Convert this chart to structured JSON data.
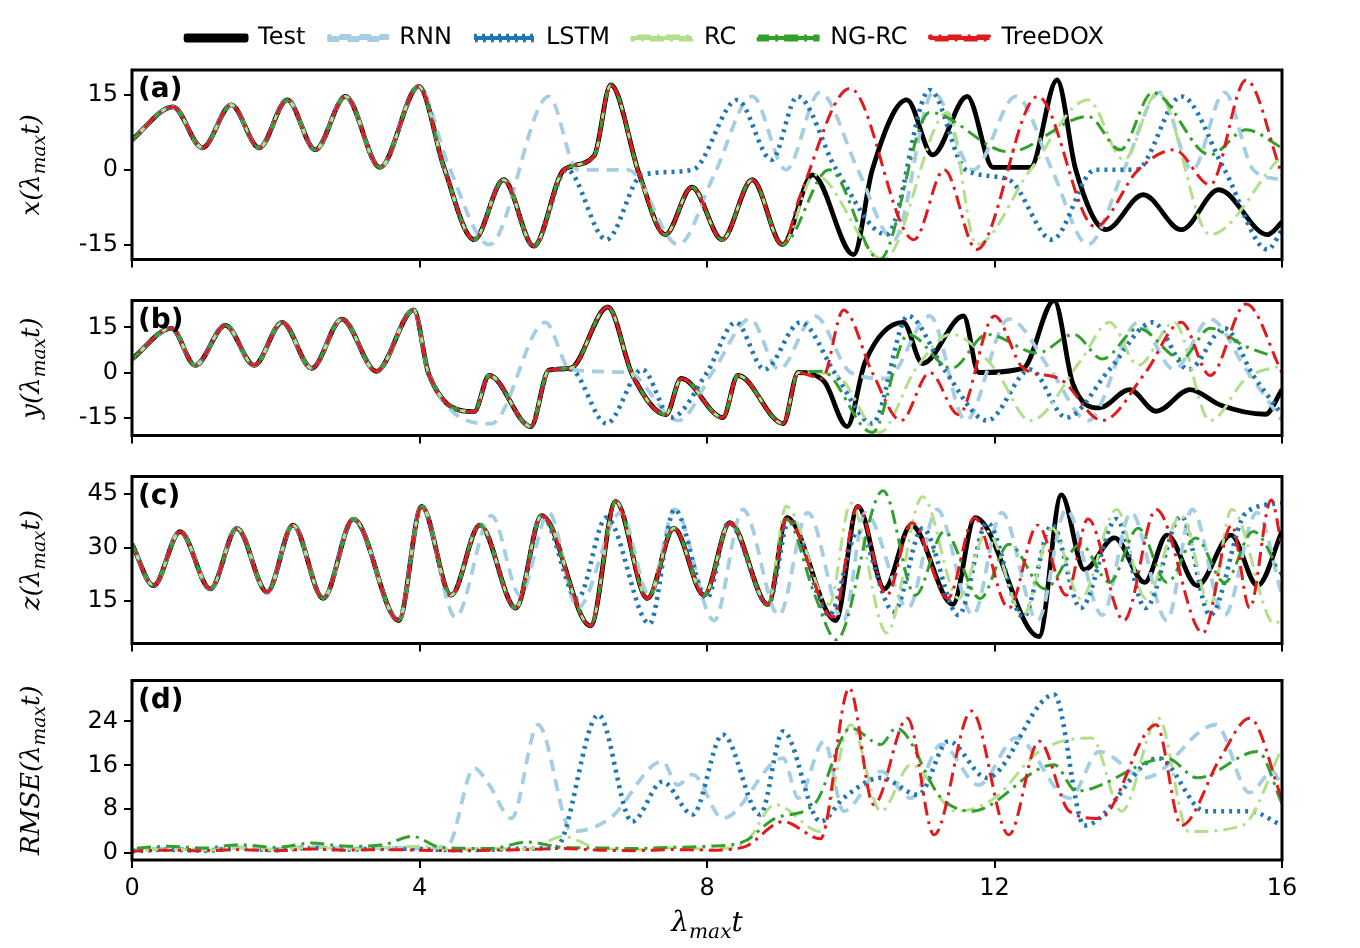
{
  "chart_data": [
    {
      "type": "line",
      "ylabel": "x(λ$_{max}$t)",
      "annotations": [
        "(a)"
      ],
      "xlim": [
        0,
        16
      ],
      "xticks": [
        0,
        4,
        8,
        12,
        16
      ],
      "ylim": [
        -18,
        20
      ],
      "yticks": [
        -15,
        0,
        15
      ],
      "tick_labels": "y",
      "grid": false,
      "legend": "top",
      "series": [
        {
          "name": "Test",
          "color": "#000000",
          "line_style": "solid",
          "x": [
            0,
            0.57,
            0.98,
            1.38,
            1.77,
            2.16,
            2.55,
            2.97,
            3.45,
            3.99,
            4.34,
            4.76,
            5.17,
            5.59,
            6.01,
            6.43,
            6.66,
            7.06,
            7.42,
            7.79,
            8.21,
            8.63,
            9.05,
            9.47,
            10.04,
            10.3,
            10.78,
            11.14,
            11.62,
            11.98,
            12.5,
            12.87,
            13.13,
            13.55,
            14.07,
            14.6,
            15.12,
            15.8,
            16
          ],
          "values": [
            6,
            12.6,
            4.4,
            13,
            4.4,
            14,
            4,
            14.7,
            0.5,
            16.7,
            0.5,
            -14,
            -2,
            -15.3,
            0,
            2.8,
            17,
            -1,
            -13,
            -3.5,
            -14,
            -2,
            -15,
            -1,
            -17,
            0,
            14,
            3,
            14.7,
            0.5,
            0.5,
            18,
            0,
            -12,
            -5,
            -12,
            -4,
            -13,
            -10.5
          ]
        },
        {
          "name": "RNN",
          "color": "#a6cee3",
          "line_style": "dashed",
          "x": [
            0,
            0.57,
            0.98,
            1.38,
            1.77,
            2.16,
            2.55,
            2.97,
            3.45,
            3.99,
            4.4,
            4.97,
            5.8,
            6.2,
            6.9,
            7.6,
            8.1,
            8.63,
            9.1,
            9.57,
            10.1,
            10.6,
            11.15,
            11.7,
            12.3,
            12.8,
            13.3,
            13.8,
            14.3,
            14.75,
            15.2,
            15.6,
            16
          ],
          "values": [
            6,
            12.6,
            4.4,
            13,
            4.4,
            14,
            4,
            14.7,
            0.5,
            16.7,
            1,
            -15,
            14.7,
            0,
            0,
            -15,
            -1,
            14.7,
            0,
            15.5,
            0,
            -14,
            15.5,
            0,
            14.7,
            0,
            -15,
            0,
            15.5,
            0,
            15.5,
            0,
            -2
          ]
        },
        {
          "name": "LSTM",
          "color": "#1f78b4",
          "line_style": "dotted",
          "x": [
            0,
            0.57,
            0.98,
            1.38,
            1.77,
            2.16,
            2.55,
            2.97,
            3.45,
            3.99,
            4.34,
            4.76,
            5.17,
            5.59,
            6.05,
            6.6,
            7.1,
            7.8,
            8.42,
            8.9,
            9.26,
            9.8,
            10.5,
            11.1,
            11.6,
            12.2,
            12.8,
            13.4,
            13.97,
            14.6,
            15.2,
            15.8,
            16
          ],
          "values": [
            6,
            12.6,
            4.4,
            13,
            4.4,
            14,
            4,
            14.7,
            0.5,
            16.7,
            0.5,
            -14,
            -2,
            -15.3,
            0,
            -14,
            -1,
            0,
            14,
            2,
            14.7,
            0,
            -13,
            16,
            0,
            -2,
            -14,
            0,
            0,
            14.7,
            0,
            -16,
            -12
          ]
        },
        {
          "name": "RC",
          "color": "#b2df8a",
          "line_style": "dashdot",
          "x": [
            0,
            0.57,
            0.98,
            1.38,
            1.77,
            2.16,
            2.55,
            2.97,
            3.45,
            3.99,
            4.34,
            4.76,
            5.17,
            5.59,
            6.01,
            6.43,
            6.66,
            7.06,
            7.42,
            7.79,
            8.21,
            8.63,
            9.05,
            9.5,
            10.46,
            11.35,
            11.75,
            12.5,
            13.3,
            13.8,
            14.27,
            15.0,
            15.9,
            16
          ],
          "values": [
            6,
            12.6,
            4.4,
            13,
            4.4,
            14,
            4,
            14.7,
            0.5,
            16.7,
            0.5,
            -14,
            -2,
            -15.3,
            0,
            2.8,
            17,
            -1,
            -13,
            -3.5,
            -14,
            -2,
            -15,
            -1,
            -18,
            11.5,
            -15,
            0,
            14,
            2,
            15.5,
            -13,
            1.3,
            3
          ]
        },
        {
          "name": "NG-RC",
          "color": "#33a02c",
          "line_style": "dashdot",
          "x": [
            0,
            0.57,
            0.98,
            1.38,
            1.77,
            2.16,
            2.55,
            2.97,
            3.45,
            3.99,
            4.34,
            4.76,
            5.17,
            5.59,
            6.01,
            6.43,
            6.66,
            7.06,
            7.42,
            7.79,
            8.21,
            8.63,
            9.05,
            9.7,
            10.4,
            11.1,
            12.2,
            13.3,
            13.75,
            14.2,
            15.0,
            15.5,
            16
          ],
          "values": [
            6,
            12.6,
            4.4,
            13,
            4.4,
            14,
            4,
            14.7,
            0.5,
            16.7,
            0.5,
            -14,
            -2,
            -15.3,
            0,
            2.8,
            17,
            -1,
            -13,
            -3.5,
            -14,
            -2,
            -15,
            0,
            -18,
            11.5,
            3.6,
            10.7,
            4,
            15.5,
            3,
            8,
            4.4
          ]
        },
        {
          "name": "TreeDOX",
          "color": "#e31a1c",
          "line_style": "dashdot",
          "x": [
            0,
            0.57,
            0.98,
            1.38,
            1.77,
            2.16,
            2.55,
            2.97,
            3.45,
            3.99,
            4.34,
            4.76,
            5.17,
            5.59,
            6.01,
            6.43,
            6.66,
            7.06,
            7.42,
            7.79,
            8.21,
            8.63,
            9.05,
            9.3,
            9.99,
            10.88,
            11.3,
            11.75,
            12.6,
            13.4,
            14.0,
            14.5,
            15.0,
            15.5,
            16
          ],
          "values": [
            6,
            12.6,
            4.4,
            13,
            4.4,
            14,
            4,
            14.7,
            0.5,
            16.7,
            0.5,
            -14,
            -2,
            -15.3,
            0,
            2.8,
            17,
            -1,
            -13,
            -3.5,
            -14,
            -2,
            -15,
            -5,
            16.3,
            -14,
            0,
            -16,
            14.7,
            -11.4,
            0,
            4,
            -3,
            18,
            -1
          ]
        }
      ]
    },
    {
      "type": "line",
      "ylabel": "y(λ$_{max}$t)",
      "annotations": [
        "(b)"
      ],
      "xlim": [
        0,
        16
      ],
      "xticks": [
        0,
        4,
        8,
        12,
        16
      ],
      "ylim": [
        -21,
        24
      ],
      "yticks": [
        -15,
        0,
        15
      ],
      "tick_labels": "y",
      "grid": false,
      "series": [
        {
          "color": "#000000",
          "line_style": "solid",
          "x": [
            0,
            0.55,
            0.88,
            1.3,
            1.7,
            2.09,
            2.5,
            2.92,
            3.4,
            3.92,
            4.13,
            4.76,
            4.97,
            5.55,
            5.8,
            6.1,
            6.62,
            6.96,
            7.43,
            7.64,
            8.22,
            8.43,
            9.06,
            9.27,
            9.63,
            9.95,
            10.2,
            10.73,
            11.0,
            11.57,
            11.78,
            12.4,
            12.83,
            13.09,
            13.46,
            13.88,
            14.25,
            14.72,
            15.14,
            15.77,
            16
          ],
          "values": [
            4.5,
            14.7,
            2.4,
            15.7,
            2.4,
            16.7,
            1.4,
            17.8,
            0.4,
            20.8,
            -0.6,
            -13,
            -1,
            -18,
            0.8,
            1.4,
            21.8,
            -0.6,
            -14,
            -2,
            -15,
            -1,
            -17,
            0,
            -3,
            -18,
            3.5,
            16.7,
            3,
            18.8,
            0,
            1.4,
            23.9,
            -3.7,
            -11.8,
            -5.7,
            -12.9,
            -5.7,
            -10.8,
            -13.9,
            -5.7
          ]
        },
        {
          "color": "#a6cee3",
          "line_style": "dashed",
          "x": [
            0,
            0.55,
            0.88,
            1.3,
            1.7,
            2.09,
            2.5,
            2.92,
            3.4,
            3.92,
            4.13,
            5.0,
            5.75,
            6.1,
            6.9,
            7.6,
            8.1,
            8.6,
            9.0,
            9.5,
            10.0,
            10.5,
            11.1,
            11.6,
            12.2,
            12.8,
            13.3,
            14.0,
            14.5,
            15.0,
            15.5,
            16
          ],
          "values": [
            4.5,
            14.7,
            2.4,
            15.7,
            2.4,
            16.7,
            1.4,
            17.8,
            0.4,
            20.8,
            -0.6,
            -17,
            16.7,
            1,
            0,
            -16,
            1,
            17.8,
            1,
            18.8,
            0,
            -2,
            18.8,
            -16,
            17.8,
            0,
            -16,
            16.7,
            1,
            17.8,
            1,
            -16
          ]
        },
        {
          "color": "#1f78b4",
          "line_style": "dotted",
          "x": [
            0,
            0.55,
            0.88,
            1.3,
            1.7,
            2.09,
            2.5,
            2.92,
            3.4,
            3.92,
            4.13,
            4.76,
            4.97,
            5.55,
            5.8,
            6.1,
            6.6,
            7.1,
            7.5,
            8.0,
            8.4,
            8.8,
            9.3,
            9.8,
            10.3,
            10.8,
            11.3,
            11.9,
            12.5,
            13.0,
            13.6,
            14.2,
            14.7,
            15.2,
            15.6,
            16
          ],
          "values": [
            4.5,
            14.7,
            2.4,
            15.7,
            2.4,
            16.7,
            1.4,
            17.8,
            0.4,
            20.8,
            -0.6,
            -13,
            -1,
            -18,
            0.8,
            1,
            -17,
            1,
            -15,
            0,
            16.7,
            1,
            16.7,
            -1,
            -17,
            18.8,
            1,
            -16,
            1,
            -15,
            1,
            16.7,
            1,
            14.7,
            -1,
            -14
          ]
        },
        {
          "color": "#b2df8a",
          "line_style": "dashdot",
          "x": [
            0,
            0.55,
            0.88,
            1.3,
            1.7,
            2.09,
            2.5,
            2.92,
            3.4,
            3.92,
            4.13,
            4.76,
            4.97,
            5.55,
            5.8,
            6.1,
            6.62,
            6.96,
            7.43,
            7.64,
            8.22,
            8.43,
            9.06,
            9.27,
            9.8,
            10.4,
            10.9,
            11.4,
            12.0,
            12.5,
            13.2,
            13.6,
            14.0,
            14.5,
            15.0,
            15.5,
            16
          ],
          "values": [
            4.5,
            14.7,
            2.4,
            15.7,
            2.4,
            16.7,
            1.4,
            17.8,
            0.4,
            20.8,
            -0.6,
            -13,
            -1,
            -18,
            0.8,
            1.4,
            21.8,
            -0.6,
            -14,
            -2,
            -15,
            -1,
            -17,
            0,
            -1,
            -20,
            1,
            12.7,
            1.4,
            -16,
            4,
            16.7,
            2.4,
            16.7,
            -16,
            -2,
            2.4
          ]
        },
        {
          "color": "#33a02c",
          "line_style": "dashdot",
          "x": [
            0,
            0.55,
            0.88,
            1.3,
            1.7,
            2.09,
            2.5,
            2.92,
            3.4,
            3.92,
            4.13,
            4.76,
            4.97,
            5.55,
            5.8,
            6.1,
            6.62,
            6.96,
            7.43,
            7.64,
            8.22,
            8.43,
            9.06,
            9.27,
            9.6,
            10.3,
            10.8,
            11.4,
            11.9,
            12.6,
            13.1,
            13.5,
            14.0,
            14.6,
            15.0,
            15.5,
            16
          ],
          "values": [
            4.5,
            14.7,
            2.4,
            15.7,
            2.4,
            16.7,
            1.4,
            17.8,
            0.4,
            20.8,
            -0.6,
            -13,
            -1,
            -18,
            0.8,
            1.4,
            21.8,
            -0.6,
            -14,
            -2,
            -15,
            -1,
            -17,
            0,
            0.4,
            -20,
            12.7,
            1.4,
            12.7,
            6.5,
            12.7,
            4.5,
            14.7,
            4.5,
            14.7,
            8.6,
            4.5
          ]
        },
        {
          "color": "#e31a1c",
          "line_style": "dashdot",
          "x": [
            0,
            0.55,
            0.88,
            1.3,
            1.7,
            2.09,
            2.5,
            2.92,
            3.4,
            3.92,
            4.13,
            4.76,
            4.97,
            5.55,
            5.8,
            6.1,
            6.62,
            6.96,
            7.43,
            7.64,
            8.22,
            8.43,
            9.06,
            9.27,
            9.6,
            9.9,
            10.3,
            10.7,
            11.1,
            11.5,
            12.0,
            12.4,
            12.9,
            13.5,
            14.1,
            14.6,
            15.0,
            15.5,
            16
          ],
          "values": [
            4.5,
            14.7,
            2.4,
            15.7,
            2.4,
            16.7,
            1.4,
            17.8,
            0.4,
            20.8,
            -0.6,
            -13,
            -1,
            -18,
            0.8,
            1.4,
            21.8,
            -0.6,
            -14,
            -2,
            -15,
            -1,
            -17,
            0,
            -2,
            20.8,
            0,
            -16,
            0,
            -14,
            18.8,
            1.4,
            -2,
            -16,
            0,
            16.7,
            -1,
            22.8,
            0
          ]
        }
      ]
    },
    {
      "type": "line",
      "ylabel": "z(λ$_{max}$t)",
      "annotations": [
        "(c)"
      ],
      "xlim": [
        0,
        16
      ],
      "xticks": [
        0,
        4,
        8,
        12,
        16
      ],
      "ylim": [
        3,
        50
      ],
      "yticks": [
        15,
        30,
        45
      ],
      "tick_labels": "y",
      "grid": false,
      "series": [
        {
          "color": "#000000",
          "line_style": "solid",
          "x": [
            0,
            0.3,
            0.67,
            1.09,
            1.46,
            1.88,
            2.24,
            2.66,
            3.08,
            3.71,
            4.03,
            4.44,
            4.84,
            5.34,
            5.7,
            6.38,
            6.73,
            7.17,
            7.54,
            7.96,
            8.32,
            8.85,
            9.11,
            9.79,
            10.1,
            10.47,
            10.84,
            11.42,
            11.73,
            12.62,
            12.93,
            13.25,
            13.67,
            14.09,
            14.4,
            14.82,
            15.29,
            15.66,
            16
          ],
          "values": [
            31,
            19.3,
            34.5,
            18.4,
            35.4,
            17.5,
            36.3,
            15.7,
            38,
            9.5,
            41.6,
            16.6,
            36.3,
            13,
            39,
            8,
            43,
            15.7,
            35.4,
            16.6,
            37,
            14,
            38.4,
            9.5,
            41.6,
            18.4,
            36.3,
            14,
            38.4,
            5,
            44.8,
            23.8,
            32.7,
            20.2,
            33.5,
            19.3,
            33.5,
            19.3,
            34.5
          ]
        },
        {
          "color": "#a6cee3",
          "line_style": "dashed",
          "x": [
            0,
            0.3,
            0.67,
            1.09,
            1.46,
            1.88,
            2.24,
            2.66,
            3.08,
            3.71,
            4.03,
            4.5,
            5.0,
            5.4,
            5.8,
            6.2,
            6.8,
            7.2,
            7.55,
            8.1,
            8.5,
            9.0,
            9.4,
            9.9,
            10.2,
            10.8,
            11.2,
            11.7,
            12.1,
            12.6,
            13.0,
            13.5,
            13.9,
            14.4,
            14.75,
            15.2,
            15.65,
            16
          ],
          "values": [
            31,
            19.3,
            34.5,
            18.4,
            35.4,
            17.5,
            36.3,
            15.7,
            38,
            9.5,
            41.6,
            10.4,
            39,
            16.6,
            39.8,
            13,
            39.8,
            16.6,
            40.7,
            9.5,
            40.7,
            11,
            39.8,
            9.5,
            39.8,
            13,
            40.7,
            11,
            39.8,
            9.5,
            40.7,
            11,
            39.8,
            9.5,
            40.7,
            11,
            39.8,
            16.6
          ]
        },
        {
          "color": "#1f78b4",
          "line_style": "dotted",
          "x": [
            0,
            0.3,
            0.67,
            1.09,
            1.46,
            1.88,
            2.24,
            2.66,
            3.08,
            3.71,
            4.03,
            4.44,
            4.84,
            5.34,
            5.7,
            6.2,
            6.6,
            7.2,
            7.55,
            8.0,
            8.3,
            8.85,
            9.15,
            9.7,
            10.1,
            10.6,
            11.0,
            11.5,
            11.9,
            12.4,
            12.8,
            13.2,
            13.7,
            14.1,
            14.6,
            15.0,
            15.5,
            16
          ],
          "values": [
            31,
            19.3,
            34.5,
            18.4,
            35.4,
            17.5,
            36.3,
            15.7,
            38,
            9.5,
            41.6,
            16.6,
            36.3,
            13,
            39,
            15.7,
            38.4,
            8.6,
            40.7,
            15.7,
            37,
            14,
            38,
            11,
            34.5,
            12,
            35.4,
            11,
            37,
            10.4,
            36.3,
            13,
            38,
            13,
            38.8,
            11,
            39.8,
            42.5
          ]
        },
        {
          "color": "#b2df8a",
          "line_style": "dashdot",
          "x": [
            0,
            0.3,
            0.67,
            1.09,
            1.46,
            1.88,
            2.24,
            2.66,
            3.08,
            3.71,
            4.03,
            4.44,
            4.84,
            5.34,
            5.7,
            6.38,
            6.73,
            7.17,
            7.54,
            7.96,
            8.32,
            8.85,
            9.1,
            9.7,
            10.0,
            10.5,
            11.0,
            11.5,
            11.9,
            12.4,
            12.8,
            13.2,
            13.7,
            14.1,
            14.6,
            15.0,
            15.3,
            15.9,
            16
          ],
          "values": [
            31,
            19.3,
            34.5,
            18.4,
            35.4,
            17.5,
            36.3,
            15.7,
            38,
            9.5,
            41.6,
            16.6,
            36.3,
            13,
            39,
            8,
            43,
            15.7,
            35.4,
            16.6,
            37,
            14,
            41.6,
            14,
            42.5,
            6,
            44.3,
            15.7,
            34.5,
            11,
            35.4,
            15.7,
            40.7,
            15.7,
            39,
            13.9,
            40.7,
            8.6,
            10
          ]
        },
        {
          "color": "#33a02c",
          "line_style": "dashdot",
          "x": [
            0,
            0.3,
            0.67,
            1.09,
            1.46,
            1.88,
            2.24,
            2.66,
            3.08,
            3.71,
            4.03,
            4.44,
            4.84,
            5.34,
            5.7,
            6.38,
            6.73,
            7.17,
            7.54,
            7.96,
            8.32,
            8.85,
            9.1,
            9.5,
            9.8,
            10.45,
            10.9,
            11.3,
            11.8,
            12.2,
            12.7,
            13.2,
            13.6,
            14.0,
            14.4,
            14.8,
            15.2,
            15.6,
            16
          ],
          "values": [
            31,
            19.3,
            34.5,
            18.4,
            35.4,
            17.5,
            36.3,
            15.7,
            38,
            9.5,
            41.6,
            16.6,
            36.3,
            13,
            39,
            8,
            43,
            15.7,
            35.4,
            16.6,
            37,
            14,
            38,
            16.6,
            4.1,
            46,
            16.6,
            34.5,
            15.7,
            30.9,
            18.4,
            30.9,
            20.2,
            35.4,
            20.2,
            32.7,
            20.2,
            34.5,
            22
          ]
        },
        {
          "color": "#e31a1c",
          "line_style": "dashdot",
          "x": [
            0,
            0.3,
            0.67,
            1.09,
            1.46,
            1.88,
            2.24,
            2.66,
            3.08,
            3.71,
            4.03,
            4.44,
            4.84,
            5.34,
            5.7,
            6.38,
            6.73,
            7.17,
            7.54,
            7.96,
            8.32,
            8.85,
            9.11,
            9.75,
            10.1,
            10.5,
            10.85,
            11.35,
            11.72,
            12.2,
            12.6,
            13.0,
            13.3,
            13.8,
            14.25,
            14.9,
            15.3,
            15.55,
            15.85,
            16
          ],
          "values": [
            31,
            19.3,
            34.5,
            18.4,
            35.4,
            17.5,
            36.3,
            15.7,
            38,
            9.5,
            41.6,
            16.6,
            36.3,
            13,
            39,
            8,
            43,
            15.7,
            35.4,
            16.6,
            37,
            14,
            38.4,
            10.4,
            41.6,
            16.6,
            37,
            15.7,
            38.4,
            13,
            36.3,
            16.6,
            38,
            9.5,
            40.7,
            6,
            36.3,
            13,
            43.4,
            30
          ]
        }
      ]
    },
    {
      "type": "line",
      "ylabel": "RMSE(λ$_{max}$t)",
      "xlabel": "λ$_{max}$t",
      "annotations": [
        "(d)"
      ],
      "xlim": [
        0,
        16
      ],
      "xticks": [
        0,
        4,
        8,
        12,
        16
      ],
      "ylim": [
        -1.3,
        31.5
      ],
      "yticks": [
        0,
        8,
        16,
        24
      ],
      "grid": false,
      "series": [
        {
          "color": "#a6cee3",
          "line_style": "dashed",
          "x": [
            0,
            0.5,
            1,
            1.5,
            2,
            2.5,
            3,
            3.5,
            4,
            4.4,
            4.76,
            4.97,
            5.28,
            5.65,
            6.12,
            6.65,
            7.38,
            7.59,
            7.8,
            8.22,
            9.06,
            9.27,
            9.63,
            9.9,
            10.42,
            10.84,
            11.26,
            11.78,
            12.3,
            13.04,
            13.46,
            14.09,
            15.08,
            15.55,
            15.87,
            16
          ],
          "values": [
            0.5,
            0.8,
            0.6,
            1,
            0.7,
            1.2,
            0.8,
            1,
            0.8,
            1.5,
            15.5,
            12.4,
            6.3,
            23.4,
            3.9,
            6.3,
            16.7,
            12.4,
            14.3,
            6.3,
            17.3,
            10,
            20.4,
            7.6,
            14.9,
            10,
            19.8,
            12.4,
            21,
            10,
            18.5,
            13.7,
            23.4,
            11,
            14.9,
            12
          ]
        },
        {
          "color": "#1f78b4",
          "line_style": "dotted",
          "x": [
            0,
            0.5,
            1,
            1.5,
            2,
            2.5,
            3,
            3.5,
            4,
            4.5,
            5,
            5.5,
            5.9,
            6.49,
            6.96,
            7.38,
            7.8,
            8.22,
            8.74,
            9.06,
            9.58,
            9.9,
            10.42,
            10.94,
            11.36,
            11.89,
            12.83,
            13.25,
            14.28,
            14.93,
            15.55,
            16
          ],
          "values": [
            0.3,
            0.6,
            0.4,
            0.8,
            0.5,
            0.9,
            0.6,
            0.8,
            0.7,
            0.5,
            0.6,
            0.8,
            1,
            25.2,
            5.7,
            13,
            7,
            21.6,
            7,
            22.2,
            5.7,
            10,
            13.7,
            10.6,
            20.4,
            13.7,
            28.9,
            5,
            17.3,
            7.6,
            7.6,
            5
          ]
        },
        {
          "color": "#b2df8a",
          "line_style": "dashdot",
          "x": [
            0,
            0.5,
            1,
            1.5,
            2,
            2.5,
            3,
            3.5,
            4,
            4.5,
            5,
            5.5,
            6,
            6.5,
            7,
            7.5,
            8,
            8.5,
            8.95,
            9.58,
            10.0,
            10.42,
            10.84,
            11.47,
            12.0,
            12.62,
            13.35,
            13.77,
            14.28,
            14.7,
            15.45,
            16
          ],
          "values": [
            0.4,
            0.7,
            0.5,
            0.9,
            0.6,
            1,
            0.7,
            0.9,
            1.2,
            0.6,
            0.8,
            0.7,
            3,
            0.8,
            0.6,
            0.9,
            0.7,
            1.5,
            8.8,
            3.9,
            23.4,
            7.6,
            16.1,
            7.6,
            10,
            18.5,
            21,
            7.6,
            24.6,
            3.9,
            5,
            19.1
          ]
        },
        {
          "color": "#33a02c",
          "line_style": "dashdot",
          "x": [
            0,
            0.5,
            1,
            1.5,
            2,
            2.5,
            3,
            3.5,
            3.9,
            4.3,
            5,
            5.5,
            6,
            6.5,
            7,
            7.5,
            8,
            8.5,
            8.95,
            9.5,
            10.0,
            10.42,
            10.63,
            11.26,
            11.68,
            12.83,
            13.14,
            14.4,
            14.82,
            15.66,
            16
          ],
          "values": [
            0.8,
            1.2,
            0.9,
            1.5,
            1,
            1.8,
            1.2,
            1.5,
            3,
            1,
            0.8,
            2,
            1,
            0.9,
            0.8,
            1,
            1.2,
            2,
            6.3,
            9,
            22.8,
            19.8,
            22.8,
            10,
            7.6,
            16.1,
            11.3,
            17.3,
            13.7,
            18.5,
            9
          ]
        },
        {
          "color": "#e31a1c",
          "line_style": "dashdot",
          "x": [
            0,
            0.5,
            1,
            1.5,
            2,
            2.5,
            3,
            3.5,
            4,
            4.5,
            5,
            5.5,
            6,
            6.5,
            7,
            7.5,
            8,
            8.5,
            9.06,
            9.58,
            9.98,
            10.32,
            10.79,
            11.16,
            11.68,
            12.2,
            12.62,
            13.04,
            13.46,
            14.25,
            14.6,
            15.14,
            15.55,
            16
          ],
          "values": [
            0.3,
            0.5,
            0.4,
            0.6,
            0.4,
            0.7,
            0.5,
            0.6,
            0.5,
            0.4,
            0.5,
            0.6,
            0.8,
            0.5,
            0.4,
            0.6,
            0.5,
            1,
            5.7,
            2.6,
            30.1,
            8.8,
            24.6,
            3.3,
            25.9,
            3.3,
            20.4,
            7.6,
            6.3,
            23.4,
            5,
            17.3,
            24.6,
            9.8
          ]
        }
      ]
    }
  ]
}
